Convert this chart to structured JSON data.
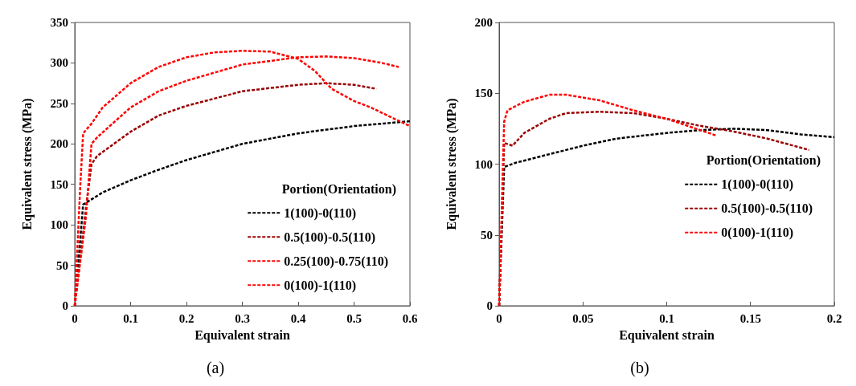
{
  "chart_data": [
    {
      "type": "line",
      "title": "(a)",
      "xlabel": "Equivalent strain",
      "ylabel": "Equivalent stress (MPa)",
      "legend_title": "Portion(Orientation)",
      "xlim": [
        0,
        0.6
      ],
      "xticks": [
        0,
        0.1,
        0.2,
        0.3,
        0.4,
        0.5,
        0.6
      ],
      "ylim": [
        0,
        350
      ],
      "yticks": [
        0,
        50,
        100,
        150,
        200,
        250,
        300,
        350
      ],
      "grid": false,
      "legend": "bottom right",
      "marker": "none",
      "line_style": "dashed",
      "series": [
        {
          "name": "1(100)-0(110)",
          "color": "#000000",
          "x": [
            0,
            0.015,
            0.05,
            0.1,
            0.15,
            0.2,
            0.3,
            0.4,
            0.5,
            0.6
          ],
          "values": [
            0,
            125,
            140,
            155,
            168,
            180,
            200,
            213,
            222,
            228
          ]
        },
        {
          "name": "0.5(100)-0.5(110)",
          "color": "#990000",
          "x": [
            0,
            0.02,
            0.03,
            0.04,
            0.1,
            0.15,
            0.2,
            0.3,
            0.4,
            0.45,
            0.5,
            0.54
          ],
          "values": [
            0,
            120,
            175,
            185,
            215,
            235,
            247,
            265,
            273,
            275,
            273,
            268
          ]
        },
        {
          "name": "0.25(100)-0.75(110)",
          "color": "#ff0000",
          "x": [
            0,
            0.02,
            0.03,
            0.04,
            0.1,
            0.15,
            0.2,
            0.3,
            0.4,
            0.45,
            0.5,
            0.55,
            0.58
          ],
          "values": [
            0,
            110,
            200,
            208,
            245,
            265,
            278,
            298,
            307,
            308,
            306,
            300,
            295
          ]
        },
        {
          "name": "0(100)-1(110)",
          "color": "#ff0000",
          "x": [
            0,
            0.01,
            0.015,
            0.03,
            0.05,
            0.1,
            0.15,
            0.2,
            0.25,
            0.3,
            0.35,
            0.4,
            0.43,
            0.46,
            0.5,
            0.53,
            0.56,
            0.6
          ],
          "values": [
            0,
            150,
            213,
            225,
            245,
            275,
            295,
            307,
            313,
            315,
            314,
            305,
            290,
            268,
            253,
            245,
            235,
            222
          ]
        }
      ]
    },
    {
      "type": "line",
      "title": "(b)",
      "xlabel": "Equivalent strain",
      "ylabel": "Equivalent stress (MPa)",
      "legend_title": "Portion(Orientation)",
      "xlim": [
        0,
        0.2
      ],
      "xticks": [
        0,
        0.05,
        0.1,
        0.15,
        0.2
      ],
      "ylim": [
        0,
        200
      ],
      "yticks": [
        0,
        50,
        100,
        150,
        200
      ],
      "grid": false,
      "legend": "right",
      "marker": "none",
      "line_style": "dashed",
      "series": [
        {
          "name": "1(100)-0(110)",
          "color": "#000000",
          "x": [
            0,
            0.003,
            0.01,
            0.03,
            0.05,
            0.07,
            0.1,
            0.12,
            0.14,
            0.16,
            0.18,
            0.2
          ],
          "values": [
            0,
            98,
            101,
            107,
            113,
            118,
            122,
            124,
            125,
            124,
            121,
            119
          ]
        },
        {
          "name": "0.5(100)-0.5(110)",
          "color": "#990000",
          "x": [
            0,
            0.003,
            0.008,
            0.015,
            0.03,
            0.04,
            0.06,
            0.08,
            0.1,
            0.12,
            0.14,
            0.16,
            0.185
          ],
          "values": [
            0,
            115,
            113,
            122,
            132,
            136,
            137,
            136,
            132,
            127,
            123,
            118,
            110
          ]
        },
        {
          "name": "0(100)-1(110)",
          "color": "#ff0000",
          "x": [
            0,
            0.003,
            0.005,
            0.015,
            0.03,
            0.04,
            0.06,
            0.08,
            0.1,
            0.12,
            0.13
          ],
          "values": [
            0,
            130,
            138,
            144,
            149,
            149,
            145,
            138,
            132,
            124,
            120
          ]
        }
      ]
    }
  ]
}
